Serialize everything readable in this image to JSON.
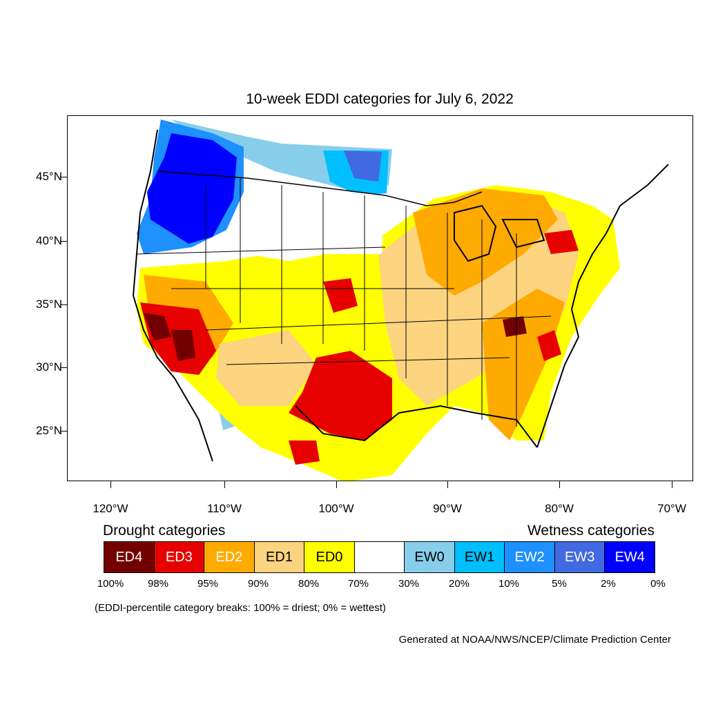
{
  "title": "10-week EDDI categories for July 6, 2022",
  "lat_labels": [
    "45°N",
    "40°N",
    "35°N",
    "30°N",
    "25°N"
  ],
  "lon_labels": [
    "120°W",
    "110°W",
    "100°W",
    "90°W",
    "80°W",
    "70°W"
  ],
  "legend": {
    "drought_title": "Drought categories",
    "wetness_title": "Wetness categories",
    "categories": [
      {
        "label": "ED4",
        "color": "#730000",
        "text_color": "#ffffff"
      },
      {
        "label": "ED3",
        "color": "#e60000",
        "text_color": "#ffffff"
      },
      {
        "label": "ED2",
        "color": "#ffaa00",
        "text_color": "#ffffff"
      },
      {
        "label": "ED1",
        "color": "#fcd37f",
        "text_color": "#000000"
      },
      {
        "label": "ED0",
        "color": "#ffff00",
        "text_color": "#000000"
      },
      {
        "label": "",
        "color": "#ffffff",
        "text_color": "#000000"
      },
      {
        "label": "EW0",
        "color": "#87ceeb",
        "text_color": "#000000"
      },
      {
        "label": "EW1",
        "color": "#00bfff",
        "text_color": "#000000"
      },
      {
        "label": "EW2",
        "color": "#1e90ff",
        "text_color": "#ffffff"
      },
      {
        "label": "EW3",
        "color": "#4169e1",
        "text_color": "#ffffff"
      },
      {
        "label": "EW4",
        "color": "#0000ff",
        "text_color": "#ffffff"
      }
    ],
    "breaks": [
      "100%",
      "98%",
      "95%",
      "90%",
      "80%",
      "70%",
      "30%",
      "20%",
      "10%",
      "5%",
      "2%",
      "0%"
    ]
  },
  "break_note": "(EDDI-percentile category breaks: 100% = driest; 0% = wettest)",
  "credit": "Generated at NOAA/NWS/NCEP/Climate Prediction Center"
}
